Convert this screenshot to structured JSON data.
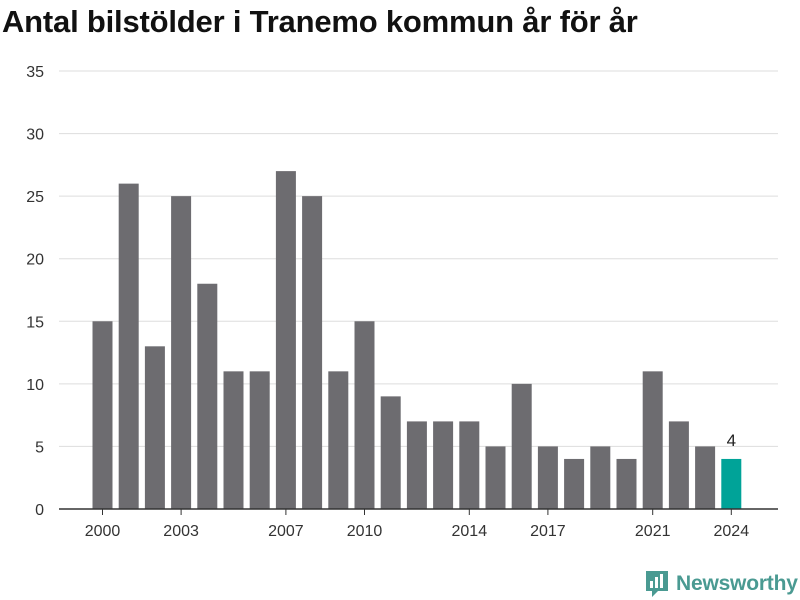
{
  "chart_data": {
    "type": "bar",
    "title": "Antal bilstölder i Tranemo kommun år för år",
    "xlabel": "",
    "ylabel": "",
    "categories": [
      "2000",
      "2001",
      "2002",
      "2003",
      "2004",
      "2005",
      "2006",
      "2007",
      "2008",
      "2009",
      "2010",
      "2011",
      "2012",
      "2013",
      "2014",
      "2015",
      "2016",
      "2017",
      "2018",
      "2019",
      "2020",
      "2021",
      "2022",
      "2023",
      "2024"
    ],
    "values": [
      15,
      26,
      13,
      25,
      18,
      11,
      11,
      27,
      25,
      11,
      15,
      9,
      7,
      7,
      7,
      5,
      10,
      5,
      4,
      5,
      4,
      11,
      7,
      5,
      4
    ],
    "x_tick_labels": [
      "2000",
      "2003",
      "2007",
      "2010",
      "2014",
      "2017",
      "2021",
      "2024"
    ],
    "y_ticks": [
      "0",
      "5",
      "10",
      "15",
      "20",
      "25",
      "30",
      "35"
    ],
    "ylim": [
      0,
      35
    ],
    "grid": true,
    "legend": "none",
    "annotations": [
      {
        "category": "2024",
        "text": "4"
      }
    ],
    "colors": {
      "bar": "#6d6c70",
      "highlight": "#00a398",
      "grid": "#dddddd"
    }
  },
  "branding": {
    "name": "Newsworthy",
    "icon": "newsworthy-logo-icon",
    "color": "#4a9a92"
  }
}
